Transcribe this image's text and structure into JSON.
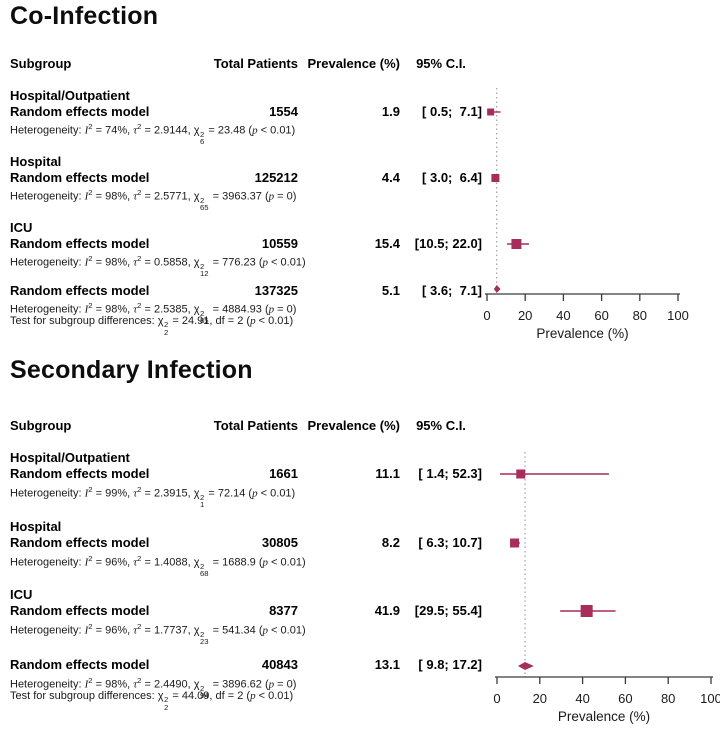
{
  "accent_color": "#a62d5c",
  "panels": [
    {
      "title": "Co-Infection",
      "header": {
        "subgroup": "Subgroup",
        "total_patients": "Total Patients",
        "prevalence": "Prevalence (%)",
        "ci": "95% C.I."
      },
      "groups": [
        {
          "label": "Hospital/Outpatient",
          "model": "Random effects model",
          "total": "1554",
          "prevalence": "1.9",
          "ci": "[ 0.5;  7.1]",
          "heterogeneity_html": "Heterogeneity: <i>I</i><sup>2</sup> = 74%, <i>&#964;</i><sup>2</sup> = 2.9144, &#967;<span class='ss'><span>2</span><span>6</span></span> = 23.48 (<i>p</i> &lt; 0.01)"
        },
        {
          "label": "Hospital",
          "model": "Random effects model",
          "total": "125212",
          "prevalence": "4.4",
          "ci": "[ 3.0;  6.4]",
          "heterogeneity_html": "Heterogeneity: <i>I</i><sup>2</sup> = 98%, <i>&#964;</i><sup>2</sup> = 2.5771, &#967;<span class='ss'><span>2</span><span>65</span></span> = 3963.37 (<i>p</i> = 0)"
        },
        {
          "label": "ICU",
          "model": "Random effects model",
          "total": "10559",
          "prevalence": "15.4",
          "ci": "[10.5; 22.0]",
          "heterogeneity_html": "Heterogeneity: <i>I</i><sup>2</sup> = 98%, <i>&#964;</i><sup>2</sup> = 0.5858, &#967;<span class='ss'><span>2</span><span>12</span></span> = 776.23 (<i>p</i> &lt; 0.01)"
        }
      ],
      "overall": {
        "model": "Random effects model",
        "total": "137325",
        "prevalence": "5.1",
        "ci": "[ 3.6;  7.1]",
        "heterogeneity_html": "Heterogeneity: <i>I</i><sup>2</sup> = 98%, <i>&#964;</i><sup>2</sup> = 2.5385, &#967;<span class='ss'><span>2</span><span>85</span></span> = 4884.93 (<i>p</i> = 0)",
        "subgroup_test_html": "Test for subgroup differences: &#967;<span class='ss'><span>2</span><span>2</span></span> = 24.91, df = 2 (<i>p</i> &lt; 0.01)"
      }
    },
    {
      "title": "Secondary Infection",
      "header": {
        "subgroup": "Subgroup",
        "total_patients": "Total Patients",
        "prevalence": "Prevalence (%)",
        "ci": "95% C.I."
      },
      "groups": [
        {
          "label": "Hospital/Outpatient",
          "model": "Random effects model",
          "total": "1661",
          "prevalence": "11.1",
          "ci": "[ 1.4; 52.3]",
          "heterogeneity_html": "Heterogeneity: <i>I</i><sup>2</sup> = 99%, <i>&#964;</i><sup>2</sup> = 2.3915, &#967;<span class='ss'><span>2</span><span>1</span></span> = 72.14 (<i>p</i> &lt; 0.01)"
        },
        {
          "label": "Hospital",
          "model": "Random effects model",
          "total": "30805",
          "prevalence": "8.2",
          "ci": "[ 6.3; 10.7]",
          "heterogeneity_html": "Heterogeneity: <i>I</i><sup>2</sup> = 96%, <i>&#964;</i><sup>2</sup> = 1.4088, &#967;<span class='ss'><span>2</span><span>68</span></span> = 1688.9 (<i>p</i> &lt; 0.01)"
        },
        {
          "label": "ICU",
          "model": "Random effects model",
          "total": "8377",
          "prevalence": "41.9",
          "ci": "[29.5; 55.4]",
          "heterogeneity_html": "Heterogeneity: <i>I</i><sup>2</sup> = 96%, <i>&#964;</i><sup>2</sup> = 1.7737, &#967;<span class='ss'><span>2</span><span>23</span></span> = 541.34 (<i>p</i> &lt; 0.01)"
        }
      ],
      "overall": {
        "model": "Random effects model",
        "total": "40843",
        "prevalence": "13.1",
        "ci": "[ 9.8; 17.2]",
        "heterogeneity_html": "Heterogeneity: <i>I</i><sup>2</sup> = 98%, <i>&#964;</i><sup>2</sup> = 2.4490, &#967;<span class='ss'><span>2</span><span>94</span></span> = 3896.62 (<i>p</i> = 0)",
        "subgroup_test_html": "Test for subgroup differences: &#967;<span class='ss'><span>2</span><span>2</span></span> = 44.09, df = 2 (<i>p</i> &lt; 0.01)"
      }
    }
  ],
  "chart_data": [
    {
      "type": "forest",
      "title": "Co-Infection",
      "xlabel": "Prevalence (%)",
      "xlim": [
        0,
        100
      ],
      "xticks": [
        0,
        20,
        40,
        60,
        80,
        100
      ],
      "reference_x": 5.1,
      "reference_line_style": "dotted",
      "marker_color": "#a62d5c",
      "axis_color": "#3a3a3a",
      "rows": [
        {
          "subgroup": "Hospital/Outpatient",
          "total_patients": 1554,
          "prevalence": 1.9,
          "ci_low": 0.5,
          "ci_high": 7.1,
          "marker": "square",
          "marker_size": 7
        },
        {
          "subgroup": "Hospital",
          "total_patients": 125212,
          "prevalence": 4.4,
          "ci_low": 3.0,
          "ci_high": 6.4,
          "marker": "square",
          "marker_size": 8
        },
        {
          "subgroup": "ICU",
          "total_patients": 10559,
          "prevalence": 15.4,
          "ci_low": 10.5,
          "ci_high": 22.0,
          "marker": "square",
          "marker_size": 10
        },
        {
          "subgroup": "Overall random effects model",
          "total_patients": 137325,
          "prevalence": 5.1,
          "ci_low": 3.6,
          "ci_high": 7.1,
          "marker": "diamond"
        }
      ]
    },
    {
      "type": "forest",
      "title": "Secondary Infection",
      "xlabel": "Prevalence (%)",
      "xlim": [
        0,
        100
      ],
      "xticks": [
        0,
        20,
        40,
        60,
        80,
        100
      ],
      "reference_x": 13.1,
      "reference_line_style": "dotted",
      "marker_color": "#a62d5c",
      "axis_color": "#3a3a3a",
      "rows": [
        {
          "subgroup": "Hospital/Outpatient",
          "total_patients": 1661,
          "prevalence": 11.1,
          "ci_low": 1.4,
          "ci_high": 52.3,
          "marker": "square",
          "marker_size": 9
        },
        {
          "subgroup": "Hospital",
          "total_patients": 30805,
          "prevalence": 8.2,
          "ci_low": 6.3,
          "ci_high": 10.7,
          "marker": "square",
          "marker_size": 9
        },
        {
          "subgroup": "ICU",
          "total_patients": 8377,
          "prevalence": 41.9,
          "ci_low": 29.5,
          "ci_high": 55.4,
          "marker": "square",
          "marker_size": 12
        },
        {
          "subgroup": "Overall random effects model",
          "total_patients": 40843,
          "prevalence": 13.1,
          "ci_low": 9.8,
          "ci_high": 17.2,
          "marker": "diamond"
        }
      ]
    }
  ]
}
